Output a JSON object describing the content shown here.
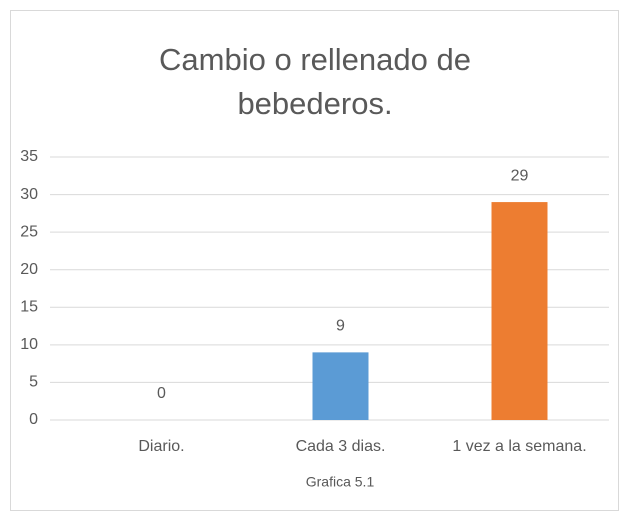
{
  "chart_data": {
    "type": "bar",
    "title": "Cambio o rellenado de bebederos.",
    "categories": [
      "Diario.",
      "Cada 3 dias.",
      "1 vez a la semana."
    ],
    "values": [
      0,
      9,
      29
    ],
    "colors": [
      "#a5a5a5",
      "#5b9bd5",
      "#ed7d31"
    ],
    "ylim": [
      0,
      35
    ],
    "yticks": [
      0,
      5,
      10,
      15,
      20,
      25,
      30,
      35
    ],
    "grid": true,
    "caption": "Grafica 5.1"
  }
}
